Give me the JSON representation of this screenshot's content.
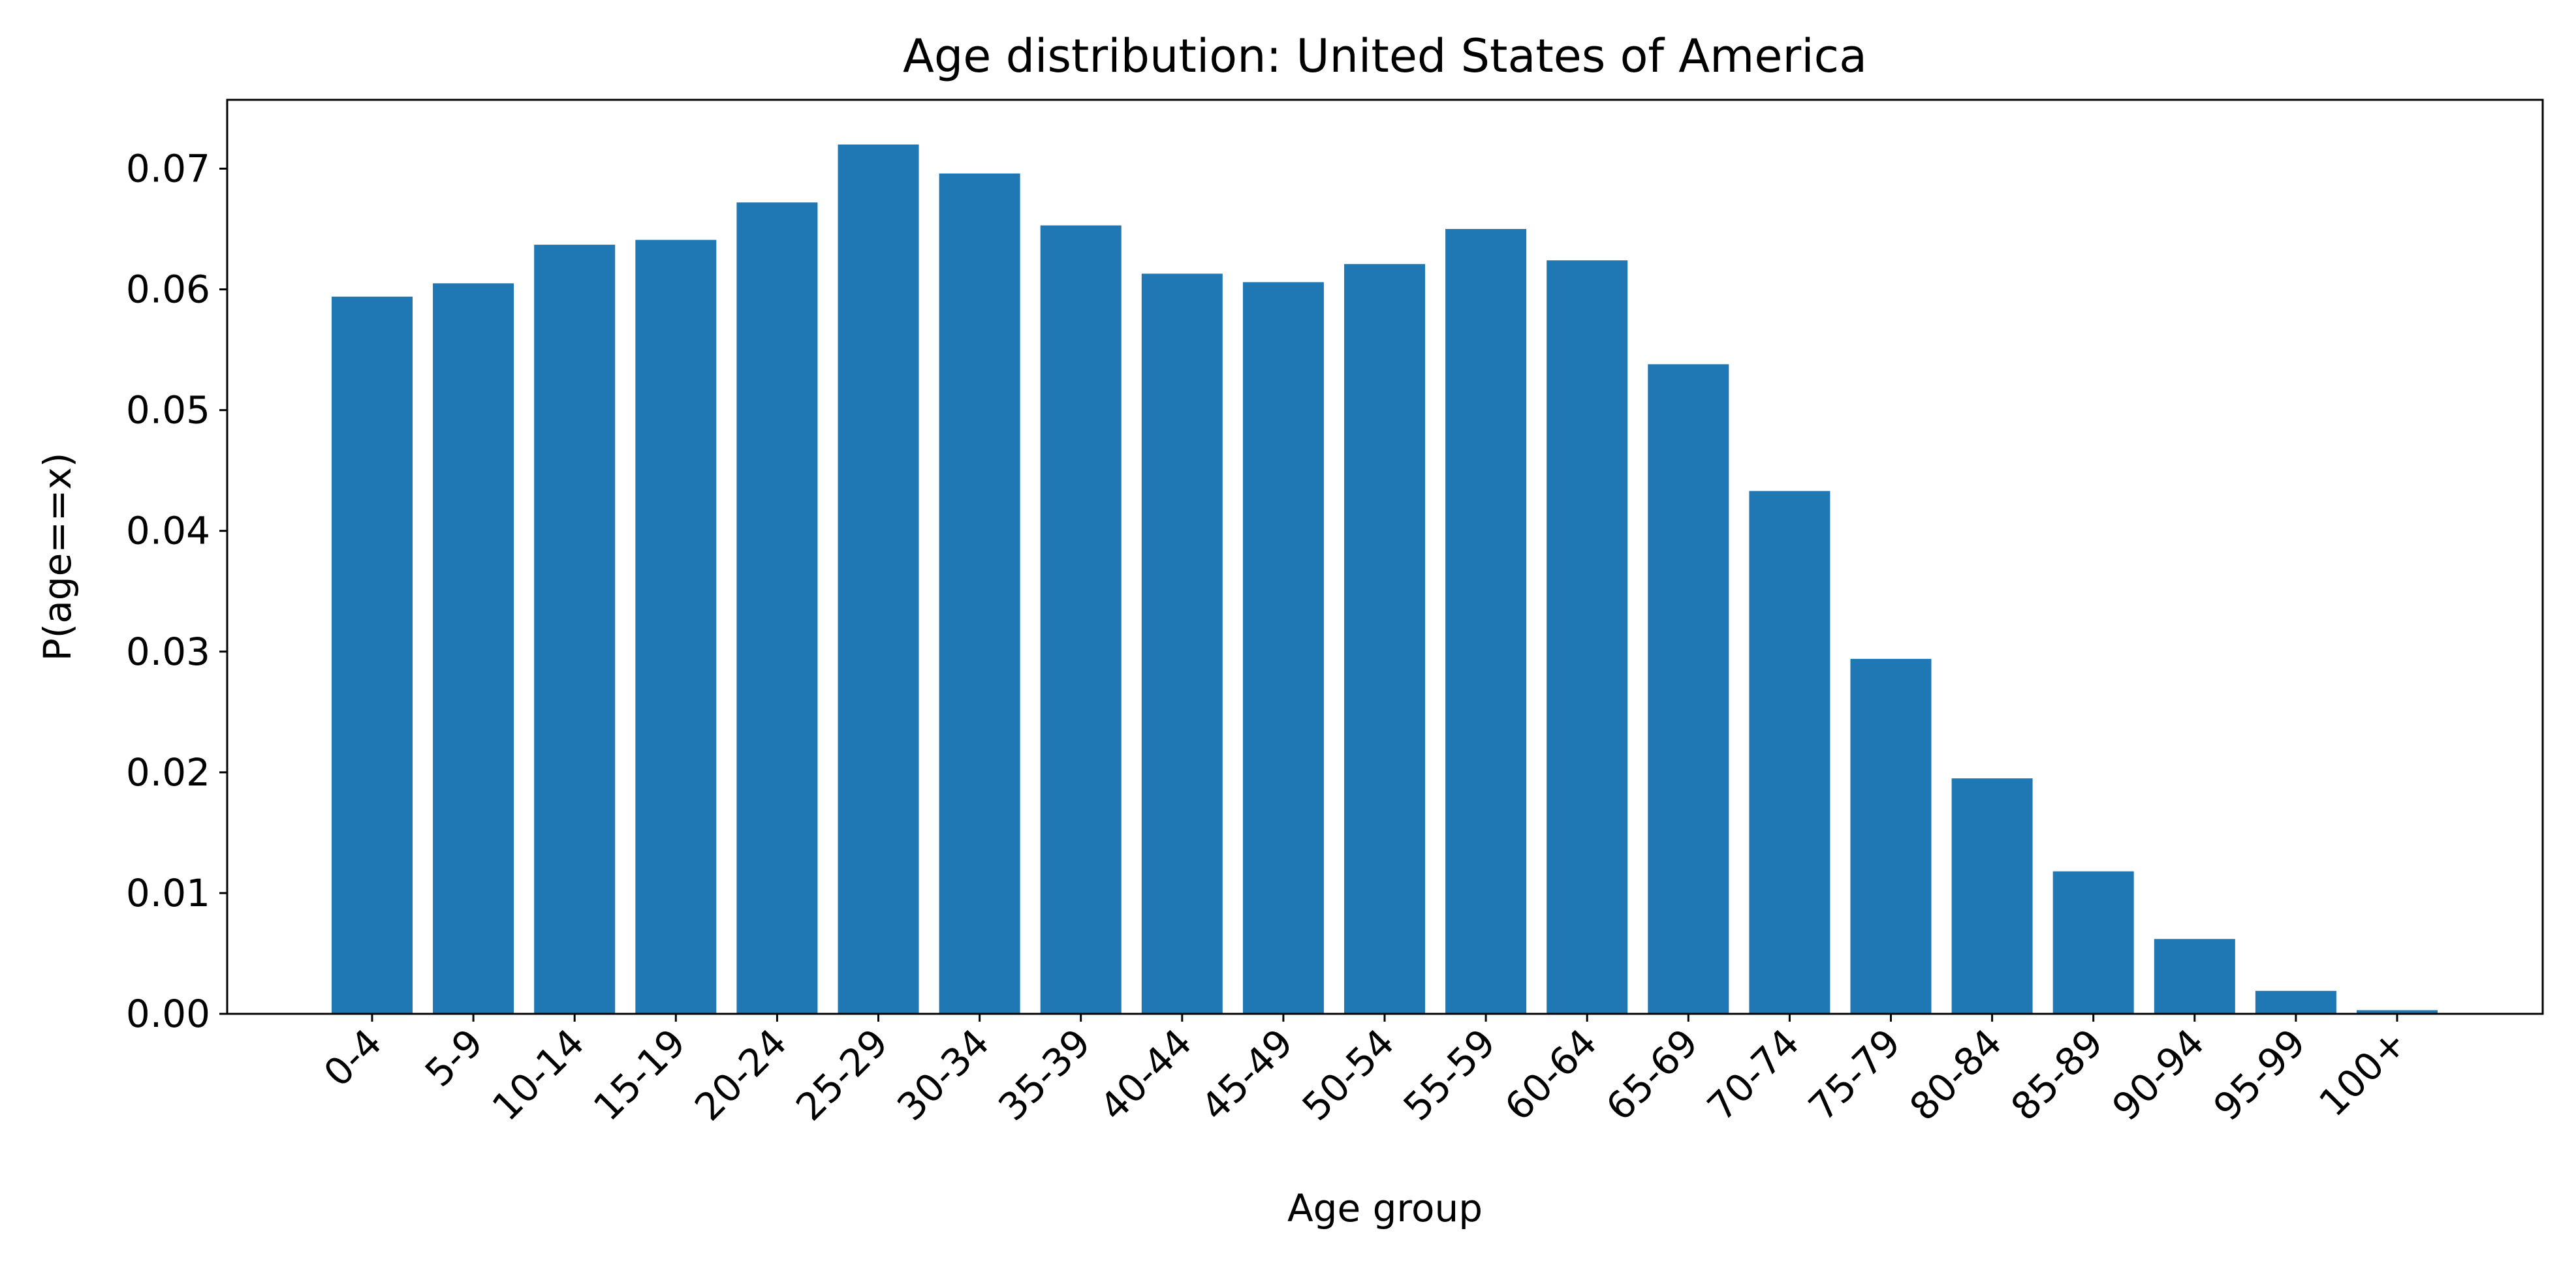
{
  "chart_data": {
    "type": "bar",
    "title": "Age distribution: United States of America",
    "xlabel": "Age group",
    "ylabel": "P(age==x)",
    "categories": [
      "0-4",
      "5-9",
      "10-14",
      "15-19",
      "20-24",
      "25-29",
      "30-34",
      "35-39",
      "40-44",
      "45-49",
      "50-54",
      "55-59",
      "60-64",
      "65-69",
      "70-74",
      "75-79",
      "80-84",
      "85-89",
      "90-94",
      "95-99",
      "100+"
    ],
    "values": [
      0.0594,
      0.0605,
      0.0637,
      0.0641,
      0.0672,
      0.072,
      0.0696,
      0.0653,
      0.0613,
      0.0606,
      0.0621,
      0.065,
      0.0624,
      0.0538,
      0.0433,
      0.0294,
      0.0195,
      0.0118,
      0.0062,
      0.0019,
      0.0003
    ],
    "ylim": [
      0,
      0.0757
    ],
    "yticks": [
      0.0,
      0.01,
      0.02,
      0.03,
      0.04,
      0.05,
      0.06,
      0.07
    ],
    "ytick_labels": [
      "0.00",
      "0.01",
      "0.02",
      "0.03",
      "0.04",
      "0.05",
      "0.06",
      "0.07"
    ],
    "bar_color": "#1f77b4",
    "grid": false,
    "legend": "none"
  }
}
